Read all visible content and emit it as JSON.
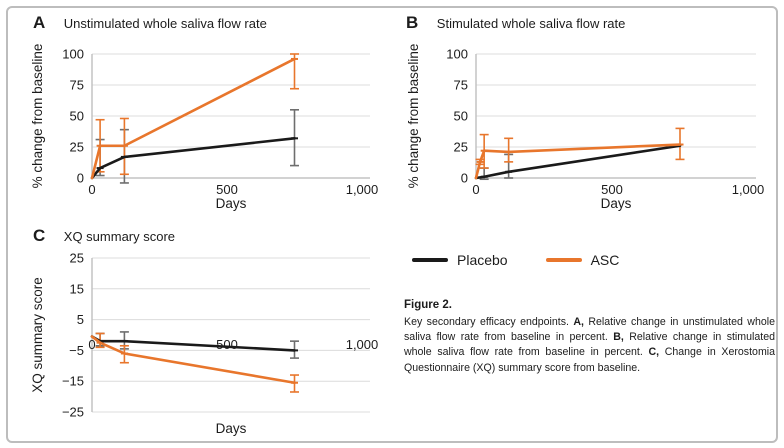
{
  "figure": {
    "legend": {
      "items": [
        {
          "label": "Placebo",
          "color": "#1a1a1a"
        },
        {
          "label": "ASC",
          "color": "#e8762c"
        }
      ]
    },
    "caption": {
      "title": "Figure 2.",
      "segments": [
        {
          "text": "Key secondary efficacy endpoints. ",
          "bold": false
        },
        {
          "text": "A,",
          "bold": true
        },
        {
          "text": " Relative change in unstimulated whole saliva flow rate from baseline in percent. ",
          "bold": false
        },
        {
          "text": "B,",
          "bold": true
        },
        {
          "text": " Relative change in stimulated whole saliva flow rate from baseline in percent. ",
          "bold": false
        },
        {
          "text": "C,",
          "bold": true
        },
        {
          "text": " Change in Xerostomia Questionnaire (XQ) summary score from baseline.",
          "bold": false
        }
      ]
    },
    "colors": {
      "frame_border": "#bdbdbd",
      "gridline": "#dcdcdc",
      "axis": "#bfbfbf",
      "placebo": "#1a1a1a",
      "asc": "#e8762c",
      "error_gray": "#6e6e6e"
    }
  },
  "chart_data": [
    {
      "id": "A",
      "type": "line",
      "panel_label": "A",
      "title": "Unstimulated whole saliva flow rate",
      "xlabel": "Days",
      "ylabel": "% change from baseline",
      "xlim": [
        0,
        1030
      ],
      "ylim": [
        0,
        100
      ],
      "grid": true,
      "legend_position": "shared-bottom-right",
      "xticks": [
        {
          "v": 0,
          "label": "0"
        },
        {
          "v": 500,
          "label": "500"
        },
        {
          "v": 1000,
          "label": "1,000"
        }
      ],
      "yticks": [
        {
          "v": 0,
          "label": "0"
        },
        {
          "v": 25,
          "label": "25"
        },
        {
          "v": 50,
          "label": "50"
        },
        {
          "v": 75,
          "label": "75"
        },
        {
          "v": 100,
          "label": "100"
        }
      ],
      "series": [
        {
          "name": "Placebo",
          "color": "#1a1a1a",
          "err_color": "#6e6e6e",
          "points": [
            {
              "x": 0,
              "y": 0
            },
            {
              "x": 30,
              "y": 8,
              "lo": 2,
              "hi": 31
            },
            {
              "x": 120,
              "y": 17,
              "lo": -4,
              "hi": 39
            },
            {
              "x": 750,
              "y": 32,
              "lo": 10,
              "hi": 55
            }
          ]
        },
        {
          "name": "ASC",
          "color": "#e8762c",
          "err_color": "#e8762c",
          "points": [
            {
              "x": 0,
              "y": 0
            },
            {
              "x": 30,
              "y": 26,
              "lo": 5,
              "hi": 47
            },
            {
              "x": 120,
              "y": 26,
              "lo": 3,
              "hi": 48
            },
            {
              "x": 750,
              "y": 96,
              "lo": 72,
              "hi": 100
            }
          ]
        }
      ]
    },
    {
      "id": "B",
      "type": "line",
      "panel_label": "B",
      "title": "Stimulated whole saliva flow rate",
      "xlabel": "Days",
      "ylabel": "% change from baseline",
      "xlim": [
        0,
        1030
      ],
      "ylim": [
        0,
        100
      ],
      "grid": true,
      "xticks": [
        {
          "v": 0,
          "label": "0"
        },
        {
          "v": 500,
          "label": "500"
        },
        {
          "v": 1000,
          "label": "1,000"
        }
      ],
      "yticks": [
        {
          "v": 0,
          "label": "0"
        },
        {
          "v": 25,
          "label": "25"
        },
        {
          "v": 50,
          "label": "50"
        },
        {
          "v": 75,
          "label": "75"
        },
        {
          "v": 100,
          "label": "100"
        }
      ],
      "series": [
        {
          "name": "Placebo",
          "color": "#1a1a1a",
          "err_color": "#6e6e6e",
          "points": [
            {
              "x": 0,
              "y": 0
            },
            {
              "x": 30,
              "y": 1,
              "lo": -1,
              "hi": 8
            },
            {
              "x": 120,
              "y": 5,
              "lo": 0,
              "hi": 19
            },
            {
              "x": 750,
              "y": 26
            }
          ]
        },
        {
          "name": "ASC",
          "color": "#e8762c",
          "err_color": "#e8762c",
          "points": [
            {
              "x": 0,
              "y": 0
            },
            {
              "x": 15,
              "y": 13,
              "lo": 11,
              "hi": 15
            },
            {
              "x": 30,
              "y": 22,
              "lo": 8,
              "hi": 35
            },
            {
              "x": 120,
              "y": 21,
              "lo": 13,
              "hi": 32
            },
            {
              "x": 750,
              "y": 27,
              "lo": 15,
              "hi": 40
            }
          ]
        }
      ]
    },
    {
      "id": "C",
      "type": "line",
      "panel_label": "C",
      "title": "XQ summary score",
      "xlabel": "Days",
      "ylabel": "XQ summary score",
      "xlim": [
        0,
        1030
      ],
      "ylim": [
        -25,
        25
      ],
      "grid": true,
      "xticks": [
        {
          "v": 0,
          "label": "0"
        },
        {
          "v": 500,
          "label": "500"
        },
        {
          "v": 1000,
          "label": "1,000"
        }
      ],
      "yticks": [
        {
          "v": 25,
          "label": "25"
        },
        {
          "v": 15,
          "label": "15"
        },
        {
          "v": 5,
          "label": "5"
        },
        {
          "v": -5,
          "label": "−5"
        },
        {
          "v": -15,
          "label": "−15"
        },
        {
          "v": -25,
          "label": "−25"
        }
      ],
      "series": [
        {
          "name": "Placebo",
          "color": "#1a1a1a",
          "err_color": "#6e6e6e",
          "points": [
            {
              "x": 0,
              "y": -0.5
            },
            {
              "x": 30,
              "y": -2,
              "lo": -3.5,
              "hi": 0.5
            },
            {
              "x": 120,
              "y": -2,
              "lo": -4.5,
              "hi": 1
            },
            {
              "x": 750,
              "y": -5,
              "lo": -7.5,
              "hi": -2
            }
          ]
        },
        {
          "name": "ASC",
          "color": "#e8762c",
          "err_color": "#e8762c",
          "points": [
            {
              "x": 0,
              "y": -0.5
            },
            {
              "x": 30,
              "y": -2.5,
              "lo": -4,
              "hi": 0.5
            },
            {
              "x": 120,
              "y": -6,
              "lo": -9,
              "hi": -3.5
            },
            {
              "x": 750,
              "y": -15.5,
              "lo": -18.5,
              "hi": -13
            }
          ]
        }
      ]
    }
  ]
}
